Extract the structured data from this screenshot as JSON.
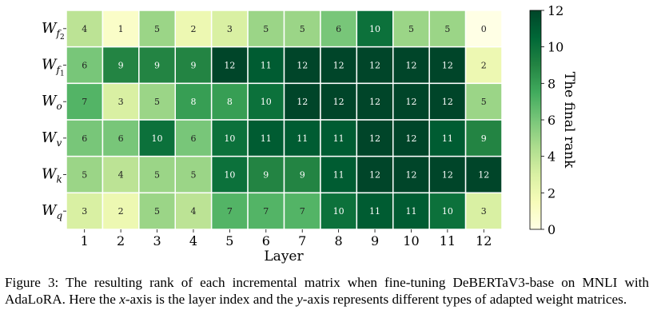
{
  "chart_data": {
    "type": "heatmap",
    "xlabel": "Layer",
    "x_categories": [
      "1",
      "2",
      "3",
      "4",
      "5",
      "6",
      "7",
      "8",
      "9",
      "10",
      "11",
      "12"
    ],
    "y_categories": [
      {
        "base": "W",
        "sub": "f",
        "subsub": "2"
      },
      {
        "base": "W",
        "sub": "f",
        "subsub": "1"
      },
      {
        "base": "W",
        "sub": "o",
        "subsub": ""
      },
      {
        "base": "W",
        "sub": "v",
        "subsub": ""
      },
      {
        "base": "W",
        "sub": "k",
        "subsub": ""
      },
      {
        "base": "W",
        "sub": "q",
        "subsub": ""
      }
    ],
    "values": [
      [
        4,
        1,
        5,
        2,
        3,
        5,
        5,
        6,
        10,
        5,
        5,
        0
      ],
      [
        6,
        9,
        9,
        9,
        12,
        11,
        12,
        12,
        12,
        12,
        12,
        2
      ],
      [
        7,
        3,
        5,
        8,
        8,
        10,
        12,
        12,
        12,
        12,
        12,
        5
      ],
      [
        6,
        6,
        10,
        6,
        10,
        11,
        11,
        11,
        12,
        12,
        11,
        9
      ],
      [
        5,
        4,
        5,
        5,
        10,
        9,
        9,
        11,
        12,
        12,
        12,
        12
      ],
      [
        3,
        2,
        5,
        4,
        7,
        7,
        7,
        10,
        11,
        11,
        10,
        3
      ]
    ],
    "colorbar": {
      "label": "The final rank",
      "range": [
        0,
        12
      ],
      "ticks": [
        "0",
        "2",
        "4",
        "6",
        "8",
        "10",
        "12"
      ],
      "colormap": "YlGn",
      "colors": [
        "#ffffe5",
        "#f7fcb9",
        "#d9f0a3",
        "#addd8e",
        "#78c679",
        "#41ab5d",
        "#238443",
        "#006837",
        "#004529"
      ]
    }
  },
  "caption": {
    "prefix": "Figure 3: The resulting rank of each incremental matrix when fine-tuning DeBERTaV3-base on MNLI with AdaLoRA. Here the ",
    "x_var": "x",
    "middle": "-axis is the layer index and the ",
    "y_var": "y",
    "suffix": "-axis represents different types of adapted weight matrices."
  }
}
